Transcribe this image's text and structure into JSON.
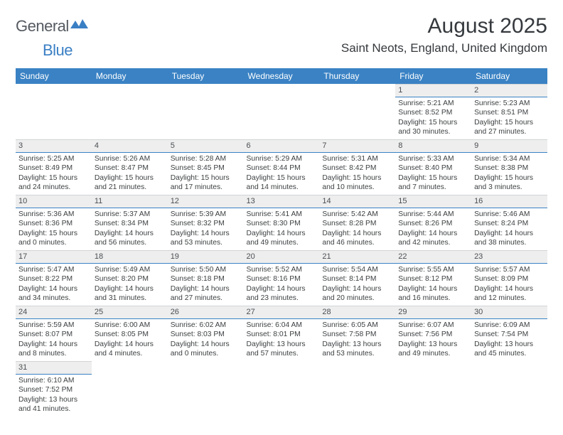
{
  "brand": {
    "part1": "General",
    "part2": "Blue"
  },
  "title": "August 2025",
  "location": "Saint Neots, England, United Kingdom",
  "colors": {
    "header_bg": "#3a82c4",
    "header_fg": "#ffffff",
    "daynum_bg": "#eeeeee",
    "daynum_border_top": "#d0d3d6",
    "daynum_border_bottom": "#3a82c4",
    "text": "#3d4042",
    "title_color": "#35393d"
  },
  "weekdays": [
    "Sunday",
    "Monday",
    "Tuesday",
    "Wednesday",
    "Thursday",
    "Friday",
    "Saturday"
  ],
  "weeks": [
    [
      null,
      null,
      null,
      null,
      null,
      {
        "n": "1",
        "r": "5:21 AM",
        "s": "8:52 PM",
        "d": "15 hours and 30 minutes."
      },
      {
        "n": "2",
        "r": "5:23 AM",
        "s": "8:51 PM",
        "d": "15 hours and 27 minutes."
      }
    ],
    [
      {
        "n": "3",
        "r": "5:25 AM",
        "s": "8:49 PM",
        "d": "15 hours and 24 minutes."
      },
      {
        "n": "4",
        "r": "5:26 AM",
        "s": "8:47 PM",
        "d": "15 hours and 21 minutes."
      },
      {
        "n": "5",
        "r": "5:28 AM",
        "s": "8:45 PM",
        "d": "15 hours and 17 minutes."
      },
      {
        "n": "6",
        "r": "5:29 AM",
        "s": "8:44 PM",
        "d": "15 hours and 14 minutes."
      },
      {
        "n": "7",
        "r": "5:31 AM",
        "s": "8:42 PM",
        "d": "15 hours and 10 minutes."
      },
      {
        "n": "8",
        "r": "5:33 AM",
        "s": "8:40 PM",
        "d": "15 hours and 7 minutes."
      },
      {
        "n": "9",
        "r": "5:34 AM",
        "s": "8:38 PM",
        "d": "15 hours and 3 minutes."
      }
    ],
    [
      {
        "n": "10",
        "r": "5:36 AM",
        "s": "8:36 PM",
        "d": "15 hours and 0 minutes."
      },
      {
        "n": "11",
        "r": "5:37 AM",
        "s": "8:34 PM",
        "d": "14 hours and 56 minutes."
      },
      {
        "n": "12",
        "r": "5:39 AM",
        "s": "8:32 PM",
        "d": "14 hours and 53 minutes."
      },
      {
        "n": "13",
        "r": "5:41 AM",
        "s": "8:30 PM",
        "d": "14 hours and 49 minutes."
      },
      {
        "n": "14",
        "r": "5:42 AM",
        "s": "8:28 PM",
        "d": "14 hours and 46 minutes."
      },
      {
        "n": "15",
        "r": "5:44 AM",
        "s": "8:26 PM",
        "d": "14 hours and 42 minutes."
      },
      {
        "n": "16",
        "r": "5:46 AM",
        "s": "8:24 PM",
        "d": "14 hours and 38 minutes."
      }
    ],
    [
      {
        "n": "17",
        "r": "5:47 AM",
        "s": "8:22 PM",
        "d": "14 hours and 34 minutes."
      },
      {
        "n": "18",
        "r": "5:49 AM",
        "s": "8:20 PM",
        "d": "14 hours and 31 minutes."
      },
      {
        "n": "19",
        "r": "5:50 AM",
        "s": "8:18 PM",
        "d": "14 hours and 27 minutes."
      },
      {
        "n": "20",
        "r": "5:52 AM",
        "s": "8:16 PM",
        "d": "14 hours and 23 minutes."
      },
      {
        "n": "21",
        "r": "5:54 AM",
        "s": "8:14 PM",
        "d": "14 hours and 20 minutes."
      },
      {
        "n": "22",
        "r": "5:55 AM",
        "s": "8:12 PM",
        "d": "14 hours and 16 minutes."
      },
      {
        "n": "23",
        "r": "5:57 AM",
        "s": "8:09 PM",
        "d": "14 hours and 12 minutes."
      }
    ],
    [
      {
        "n": "24",
        "r": "5:59 AM",
        "s": "8:07 PM",
        "d": "14 hours and 8 minutes."
      },
      {
        "n": "25",
        "r": "6:00 AM",
        "s": "8:05 PM",
        "d": "14 hours and 4 minutes."
      },
      {
        "n": "26",
        "r": "6:02 AM",
        "s": "8:03 PM",
        "d": "14 hours and 0 minutes."
      },
      {
        "n": "27",
        "r": "6:04 AM",
        "s": "8:01 PM",
        "d": "13 hours and 57 minutes."
      },
      {
        "n": "28",
        "r": "6:05 AM",
        "s": "7:58 PM",
        "d": "13 hours and 53 minutes."
      },
      {
        "n": "29",
        "r": "6:07 AM",
        "s": "7:56 PM",
        "d": "13 hours and 49 minutes."
      },
      {
        "n": "30",
        "r": "6:09 AM",
        "s": "7:54 PM",
        "d": "13 hours and 45 minutes."
      }
    ],
    [
      {
        "n": "31",
        "r": "6:10 AM",
        "s": "7:52 PM",
        "d": "13 hours and 41 minutes."
      },
      null,
      null,
      null,
      null,
      null,
      null
    ]
  ],
  "labels": {
    "sunrise_prefix": "Sunrise: ",
    "sunset_prefix": "Sunset: ",
    "daylight_prefix": "Daylight: "
  }
}
